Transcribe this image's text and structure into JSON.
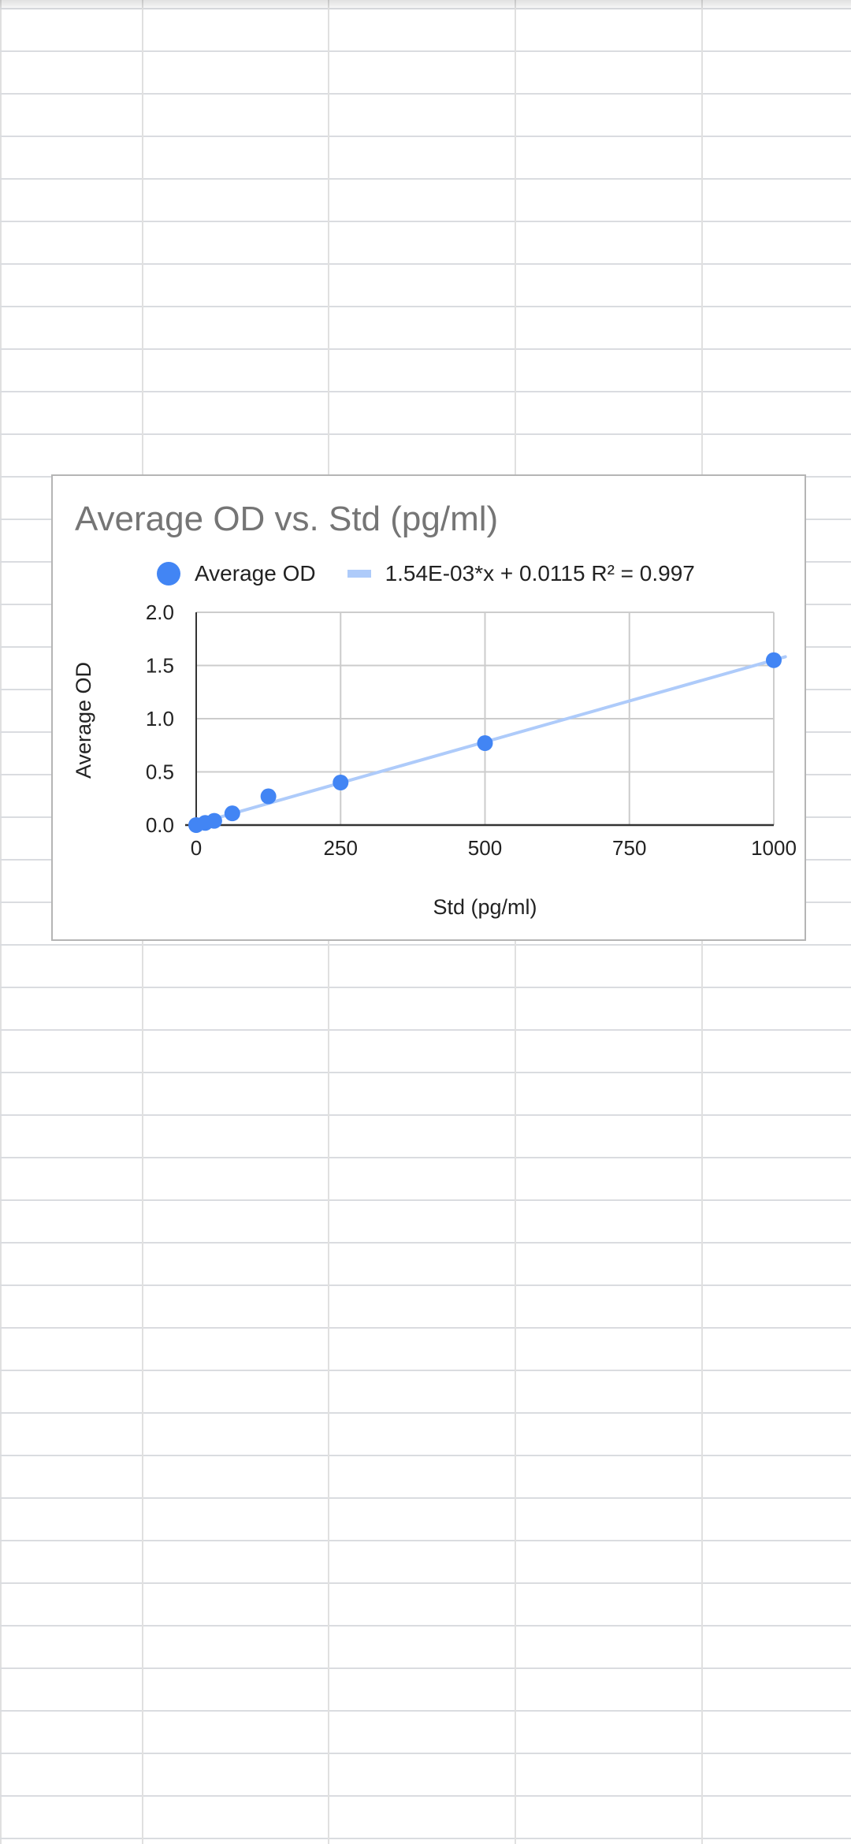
{
  "chart_data": {
    "type": "scatter",
    "title": "Average OD vs. Std (pg/ml)",
    "xlabel": "Std (pg/ml)",
    "ylabel": "Average OD",
    "xlim": [
      0,
      1000
    ],
    "ylim": [
      0,
      2.0
    ],
    "x_ticks": [
      "0",
      "250",
      "500",
      "750",
      "1000"
    ],
    "y_ticks": [
      "0.0",
      "0.5",
      "1.0",
      "1.5",
      "2.0"
    ],
    "x_tick_values": [
      0,
      250,
      500,
      750,
      1000
    ],
    "y_tick_values": [
      0,
      0.5,
      1.0,
      1.5,
      2.0
    ],
    "grid": true,
    "legend_position": "top",
    "series": [
      {
        "name": "Average OD",
        "color": "#4285f4",
        "x": [
          0,
          15.6,
          31.25,
          62.5,
          125,
          250,
          500,
          1000
        ],
        "y": [
          0.0,
          0.02,
          0.04,
          0.11,
          0.27,
          0.4,
          0.77,
          1.55
        ]
      }
    ],
    "trendline": {
      "label": "1.54E-03*x + 0.0115 R² = 0.997",
      "slope": 0.00154,
      "intercept": 0.0115,
      "r_squared": 0.997,
      "color": "#aecbfa"
    }
  }
}
